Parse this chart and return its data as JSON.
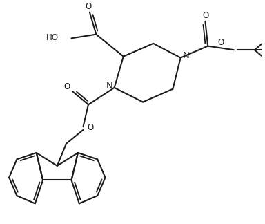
{
  "bg_color": "#ffffff",
  "line_color": "#1a1a1a",
  "line_width": 1.5,
  "font_size": 8.5,
  "figsize": [
    3.84,
    3.24
  ],
  "dpi": 100,
  "xlim": [
    0,
    10
  ],
  "ylim": [
    0,
    8.5
  ]
}
